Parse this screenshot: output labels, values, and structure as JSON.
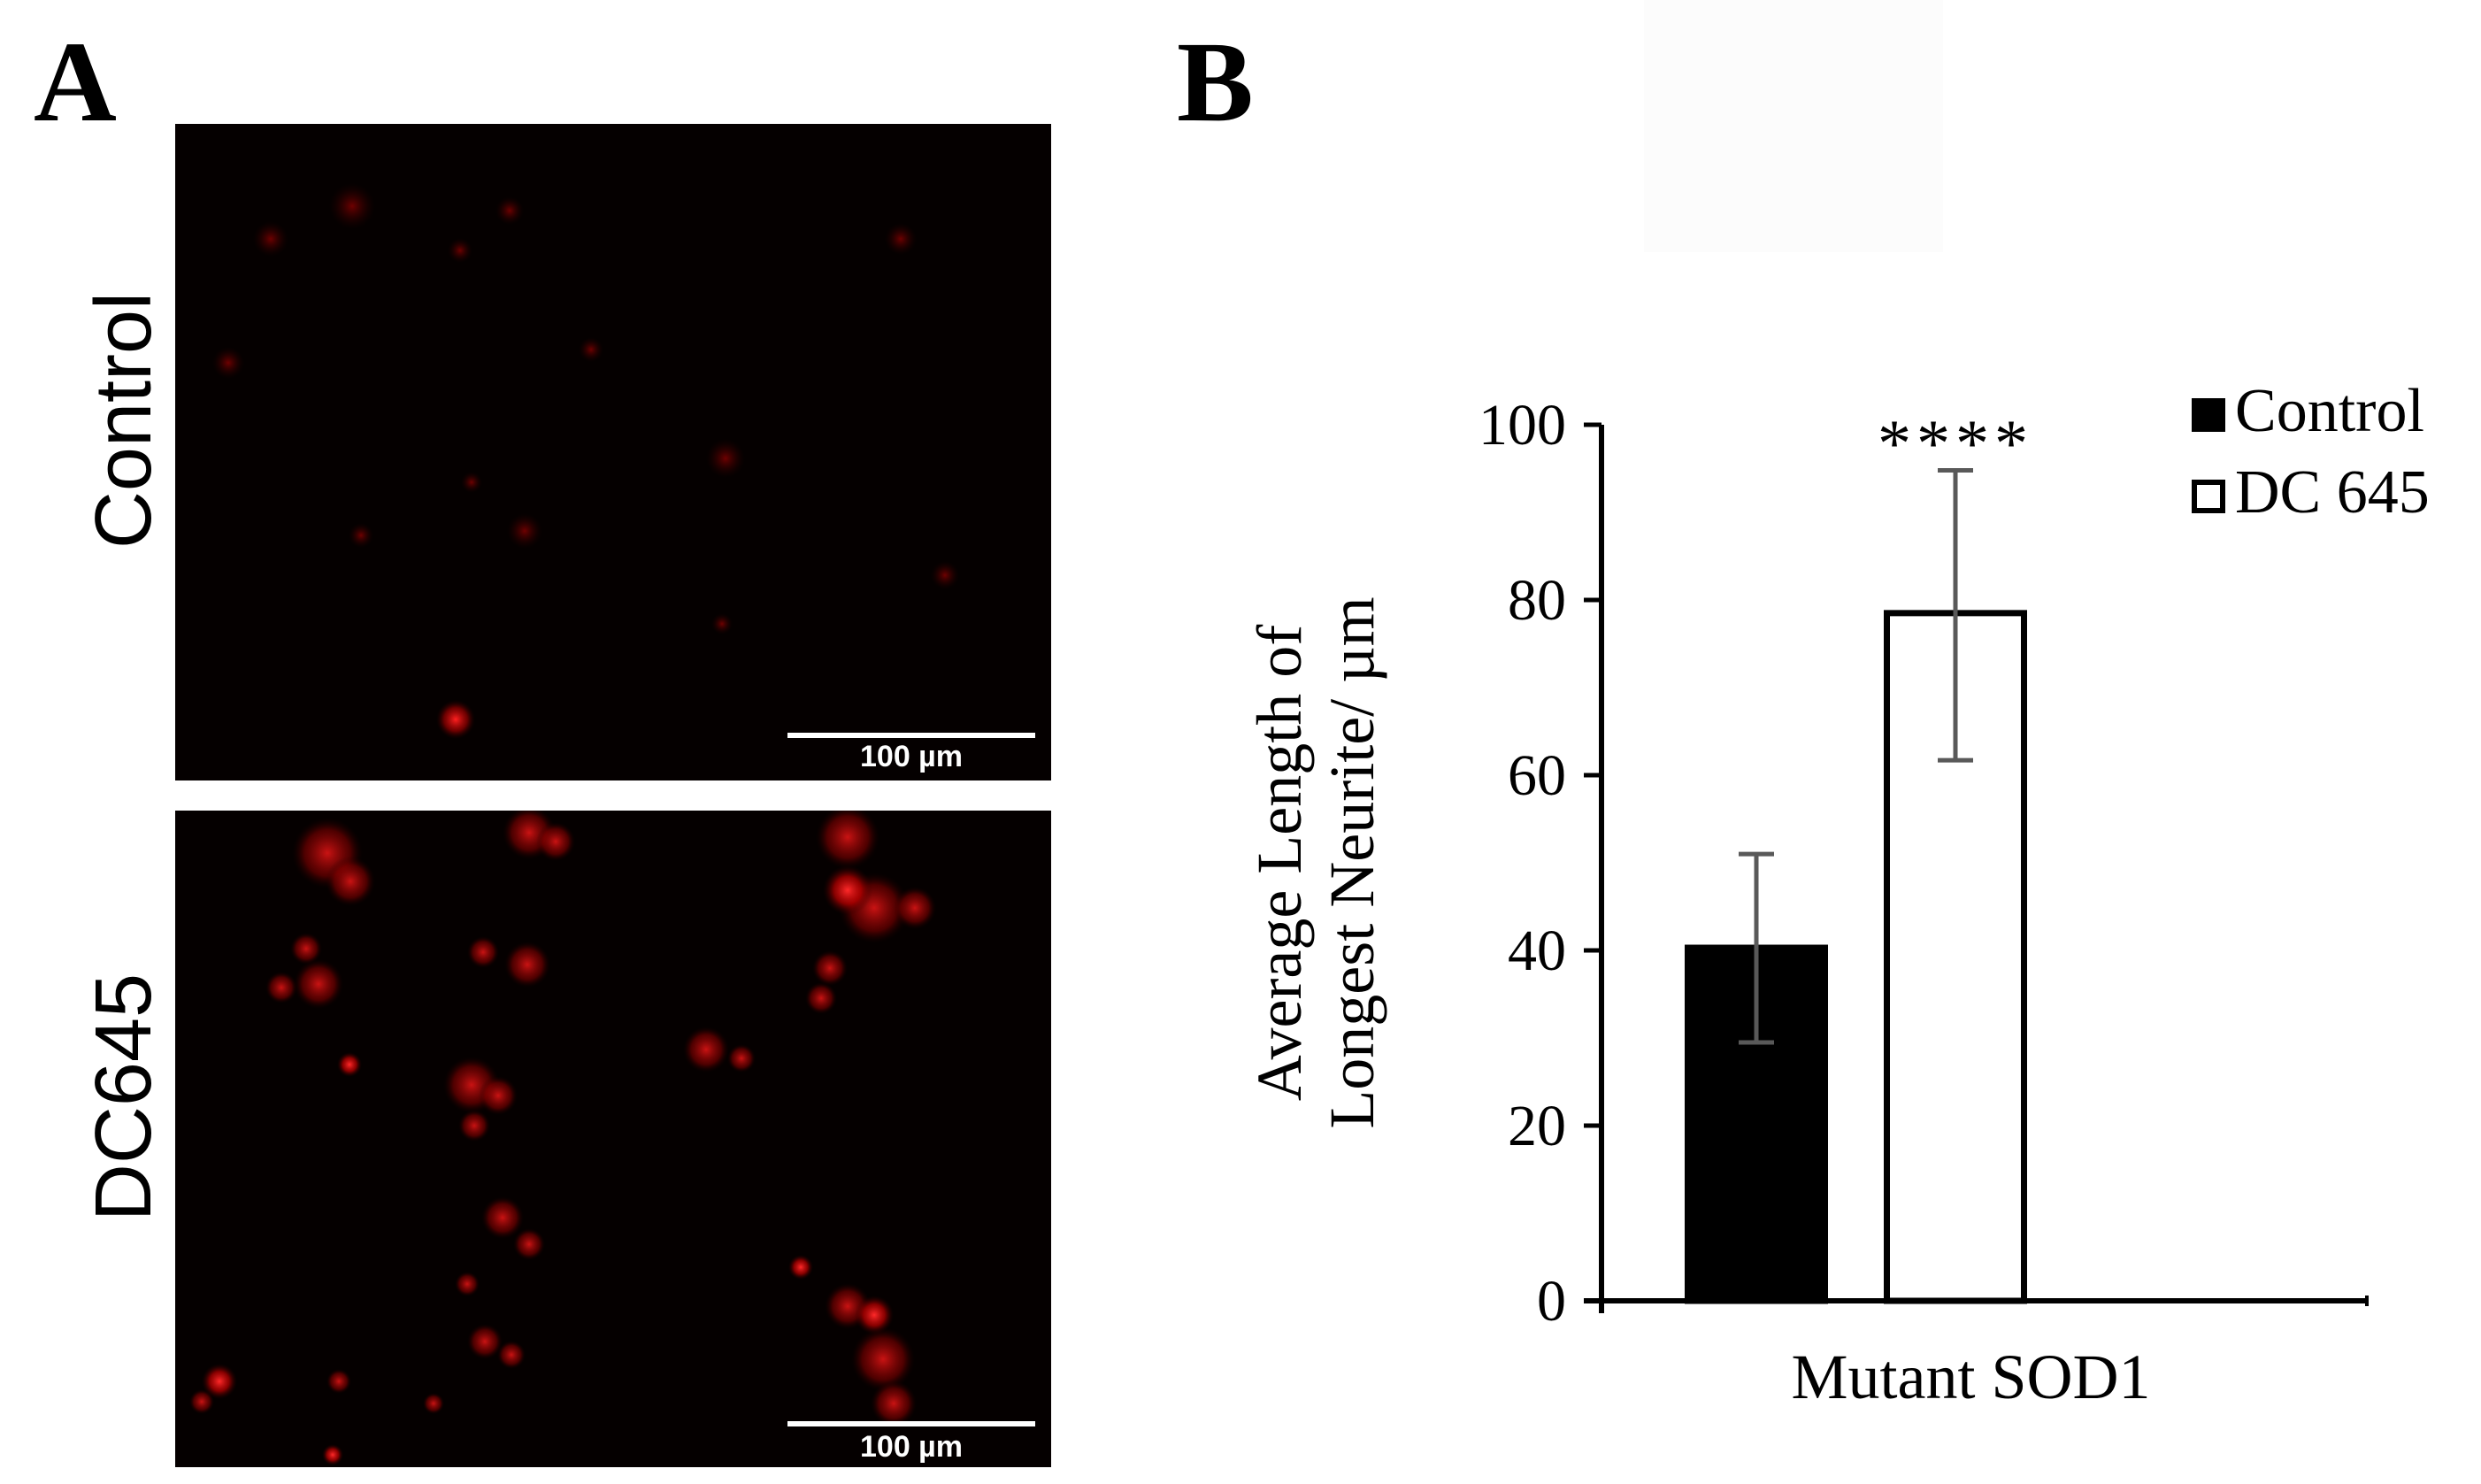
{
  "panels": {
    "a_label": "A",
    "b_label": "B"
  },
  "micrographs": {
    "rows": [
      {
        "label": "Control",
        "scale_text": "100 µm"
      },
      {
        "label": "DC645",
        "scale_text": "100 µm"
      }
    ]
  },
  "chart_data": {
    "type": "bar",
    "title": "",
    "xlabel": "Mutant SOD1",
    "ylabel_lines": [
      "Average Length of",
      "Longest Neurite/ µm"
    ],
    "ylim": [
      0,
      100
    ],
    "yticks": [
      0,
      20,
      40,
      60,
      80,
      100
    ],
    "categories": [
      "Mutant SOD1"
    ],
    "series": [
      {
        "name": "Control",
        "values": [
          40.3
        ],
        "error": [
          [
            29.5,
            51.0
          ]
        ],
        "fill": "#000000"
      },
      {
        "name": "DC 645",
        "values": [
          78.5
        ],
        "error": [
          [
            61.7,
            94.8
          ]
        ],
        "fill": "#ffffff"
      }
    ],
    "annotations": [
      {
        "text": "****",
        "series": "DC 645"
      }
    ],
    "legend": "top-right",
    "grid": false
  }
}
